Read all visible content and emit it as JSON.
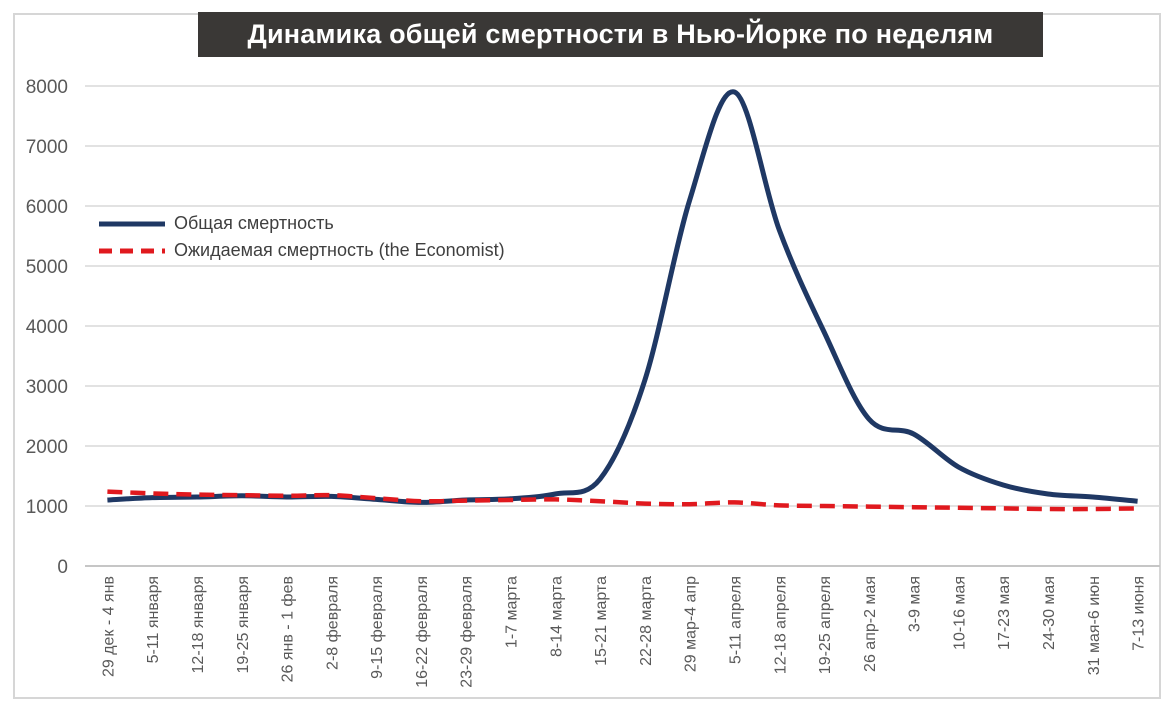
{
  "figure": {
    "title_bg": "#3A3836",
    "title_color": "#FFFFFF",
    "border_color": "#D6D6D6",
    "grid_color": "#D9D9D9",
    "axis_color": "#C6C6C6",
    "tick_label_color": "#595959"
  },
  "chart_data": {
    "type": "line",
    "title": "Динамика общей смертности в Нью-Йорке по неделям",
    "xlabel": "",
    "ylabel": "",
    "ylim": [
      0,
      8000
    ],
    "ytick_step": 1000,
    "grid": true,
    "smoothed": true,
    "legend_position": "inside-left",
    "categories": [
      "29 дек - 4 янв",
      "5-11 января",
      "12-18 января",
      "19-25 января",
      "26 янв - 1 фев",
      "2-8 февраля",
      "9-15 февраля",
      "16-22 февраля",
      "23-29 февраля",
      "1-7 марта",
      "8-14 марта",
      "15-21 марта",
      "22-28 марта",
      "29 мар-4 апр",
      "5-11 апреля",
      "12-18 апреля",
      "19-25 апреля",
      "26 апр-2 мая",
      "3-9 мая",
      "10-16 мая",
      "17-23 мая",
      "24-30 мая",
      "31 мая-6 июн",
      "7-13 июня"
    ],
    "series": [
      {
        "name": "Общая смертность",
        "color": "#1F3864",
        "style": "solid",
        "values": [
          1100,
          1140,
          1150,
          1170,
          1150,
          1160,
          1110,
          1060,
          1100,
          1120,
          1200,
          1450,
          3100,
          6100,
          7900,
          5600,
          3900,
          2450,
          2200,
          1650,
          1350,
          1200,
          1150,
          1080
        ]
      },
      {
        "name": "Ожидаемая смертность (the Economist)",
        "color": "#E0191E",
        "style": "dashed",
        "values": [
          1240,
          1210,
          1190,
          1180,
          1170,
          1180,
          1130,
          1080,
          1090,
          1100,
          1110,
          1080,
          1040,
          1030,
          1060,
          1010,
          1000,
          990,
          980,
          970,
          960,
          950,
          950,
          960
        ]
      }
    ]
  }
}
